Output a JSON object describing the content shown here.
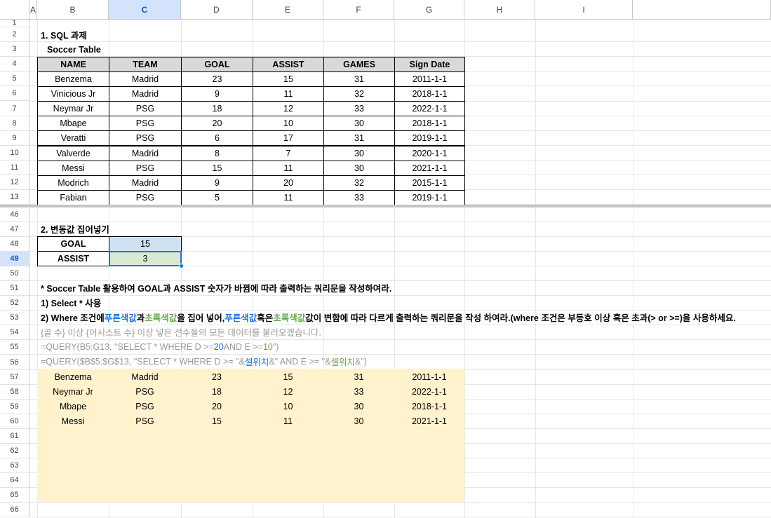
{
  "columns": [
    "A",
    "B",
    "C",
    "D",
    "E",
    "F",
    "G",
    "H",
    "I",
    ""
  ],
  "selected_column": "C",
  "selected_row": "49",
  "top_rows": [
    "1",
    "2",
    "3",
    "4",
    "5",
    "6",
    "7",
    "8",
    "9",
    "10",
    "11",
    "12",
    "13"
  ],
  "bottom_rows": [
    "46",
    "47",
    "48",
    "49",
    "50",
    "51",
    "52",
    "53",
    "54",
    "55",
    "56",
    "57",
    "58",
    "59",
    "60",
    "61",
    "62",
    "63",
    "64",
    "65",
    "66"
  ],
  "section1_title": "1. SQL 과제",
  "table_title": "Soccer Table",
  "table": {
    "headers": [
      "NAME",
      "TEAM",
      "GOAL",
      "ASSIST",
      "GAMES",
      "Sign Date"
    ],
    "rows": [
      [
        "Benzema",
        "Madrid",
        "23",
        "15",
        "31",
        "2011-1-1"
      ],
      [
        "Vinicious Jr",
        "Madrid",
        "9",
        "11",
        "32",
        "2018-1-1"
      ],
      [
        "Neymar Jr",
        "PSG",
        "18",
        "12",
        "33",
        "2022-1-1"
      ],
      [
        "Mbape",
        "PSG",
        "20",
        "10",
        "30",
        "2018-1-1"
      ],
      [
        "Veratti",
        "PSG",
        "6",
        "17",
        "31",
        "2019-1-1"
      ],
      [
        "Valverde",
        "Madrid",
        "8",
        "7",
        "30",
        "2020-1-1"
      ],
      [
        "Messi",
        "PSG",
        "15",
        "11",
        "30",
        "2021-1-1"
      ],
      [
        "Modrich",
        "Madrid",
        "9",
        "20",
        "32",
        "2015-1-1"
      ],
      [
        "Fabian",
        "PSG",
        "5",
        "11",
        "33",
        "2019-1-1"
      ]
    ]
  },
  "section2_title": "2. 변동값 집어넣기",
  "variables": {
    "goal_label": "GOAL",
    "goal_value": "15",
    "assist_label": "ASSIST",
    "assist_value": "3"
  },
  "colors": {
    "goal_bg": "#cfe2f3",
    "assist_bg": "#d9ead3",
    "result_bg": "#fff2cc",
    "selection": "#1a73e8"
  },
  "instructions": {
    "line1": "* Soccer Table 활용하여 GOAL과 ASSIST 숫자가 바뀜에 따라 출력하는 쿼리문을 작성하여라.",
    "line2": "1) Select * 사용",
    "line3_parts": [
      "2) Where 조건에 ",
      "푸른색값",
      "과 ",
      "초록색값",
      "을 집어 넣어, ",
      "푸른색값",
      " 혹은 ",
      "초록색값",
      " 값이 변함에 따라 다르게 출력하는 쿼리문을 작성 하여라.(where 조건은 부등호 이상 혹은 초과(> or >=)을 사용하세요."
    ],
    "hint": "{골 수} 이상 {어시스트 수} 이상 넣은 선수들의 모든 데이터를 불러오겠습니다.",
    "example1_parts": [
      " =QUERY(B5:G13, \"SELECT * WHERE D >= ",
      "20",
      " AND E >= ",
      "10",
      "\")"
    ],
    "example2_parts": [
      " =QUERY($B$5:$G$13, \"SELECT * WHERE D >= \"&",
      "셀위치",
      "&\" AND E >= \"&",
      "셀위치",
      "&\")"
    ]
  },
  "results": [
    [
      "Benzema",
      "Madrid",
      "23",
      "15",
      "31",
      "2011-1-1"
    ],
    [
      "Neymar Jr",
      "PSG",
      "18",
      "12",
      "33",
      "2022-1-1"
    ],
    [
      "Mbape",
      "PSG",
      "20",
      "10",
      "30",
      "2018-1-1"
    ],
    [
      "Messi",
      "PSG",
      "15",
      "11",
      "30",
      "2021-1-1"
    ]
  ]
}
